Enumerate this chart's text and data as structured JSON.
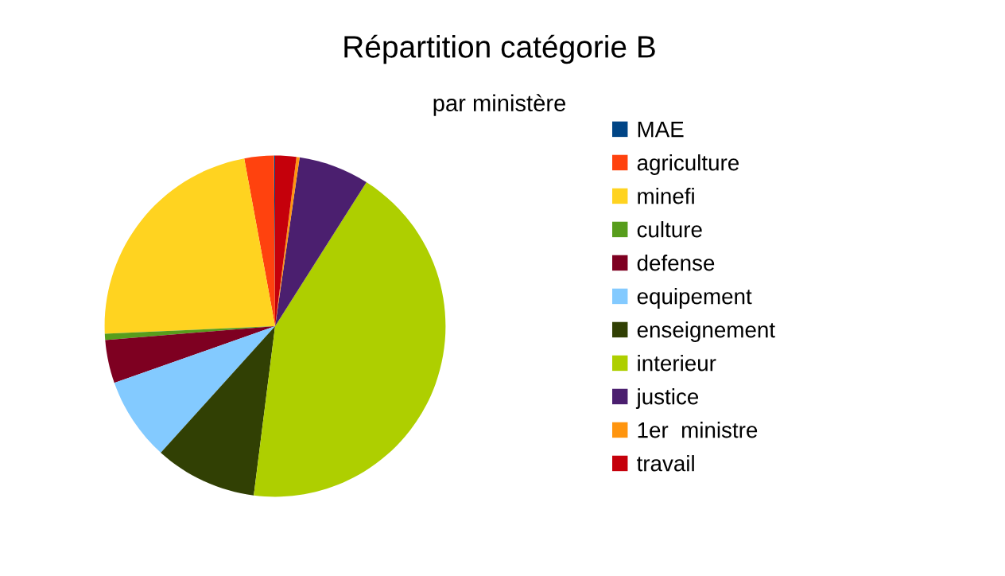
{
  "chart_data": {
    "type": "pie",
    "title": "Répartition catégorie B",
    "subtitle": "par ministère",
    "categories": [
      "MAE",
      "agriculture",
      "minefi",
      "culture",
      "defense",
      "equipement",
      "enseignement",
      "interieur",
      "justice",
      "1er  ministre",
      "travail"
    ],
    "values": [
      0.1,
      2.8,
      22.8,
      0.6,
      4.1,
      7.9,
      9.7,
      43.0,
      6.7,
      0.3,
      2.0
    ],
    "colors": [
      "#004586",
      "#ff420e",
      "#ffd320",
      "#579d1c",
      "#7e0021",
      "#83caff",
      "#314004",
      "#aecf00",
      "#4b1f6f",
      "#ff950e",
      "#c5000b"
    ],
    "legend": "right"
  }
}
